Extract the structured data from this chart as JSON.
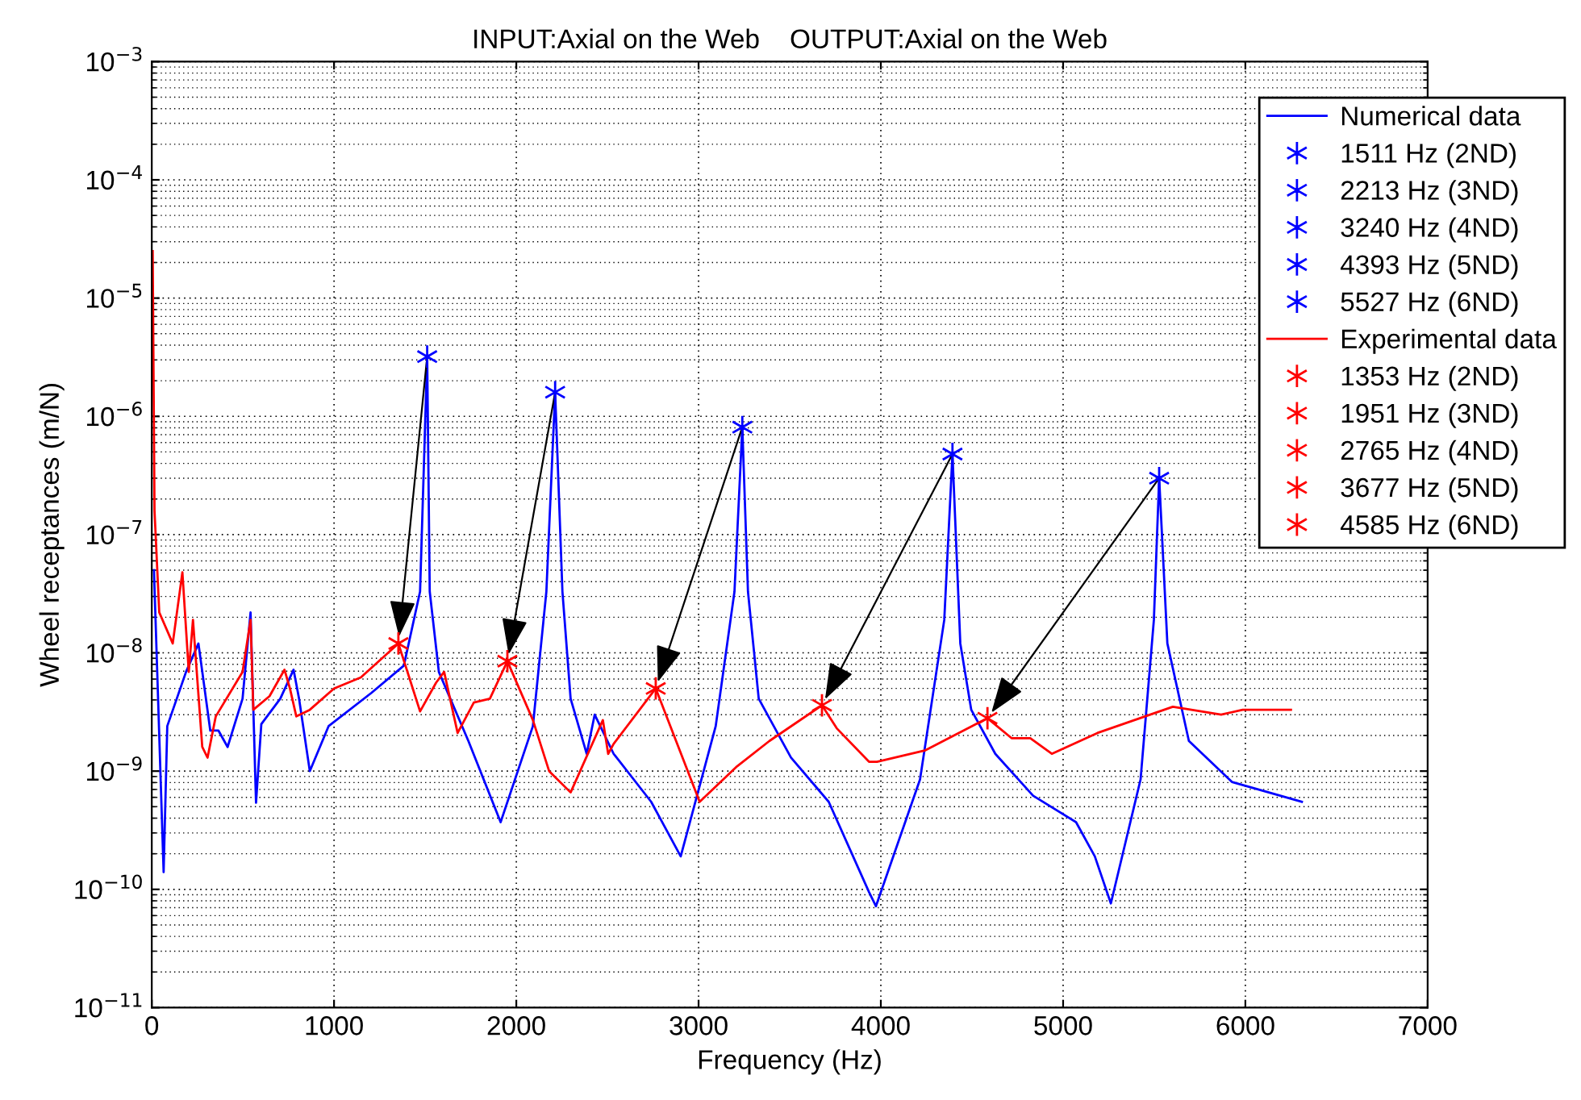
{
  "chart_data": {
    "type": "line",
    "title": "INPUT:Axial on the Web    OUTPUT:Axial on the Web",
    "xlabel": "Frequency (Hz)",
    "ylabel": "Wheel receptances (m/N)",
    "log": "y",
    "grid": true,
    "legend": "top right",
    "xlim": [
      0,
      7000
    ],
    "xticks": [
      0,
      1000,
      2000,
      3000,
      4000,
      5000,
      6000,
      7000
    ],
    "ylim": [
      1e-11,
      0.001
    ],
    "yticks": [
      {
        "value": 1e-11,
        "label": "10$^{−11}$"
      },
      {
        "value": 1e-10,
        "label": "10$^{−10}$"
      },
      {
        "value": 1e-09,
        "label": "10$^{−9}$"
      },
      {
        "value": 1e-08,
        "label": "10$^{−8}$"
      },
      {
        "value": 1e-07,
        "label": "10$^{−7}$"
      },
      {
        "value": 1e-06,
        "label": "10$^{−6}$"
      },
      {
        "value": 1e-05,
        "label": "10$^{−5}$"
      },
      {
        "value": 0.0001,
        "label": "10$^{−4}$"
      },
      {
        "value": 0.001,
        "label": "10$^{−3}$"
      }
    ],
    "series": [
      {
        "name": "Numerical data",
        "color": "#0000ff",
        "marker": "none",
        "x": [
          12,
          65,
          85,
          188,
          256,
          321,
          366,
          416,
          498,
          542,
          572,
          601,
          705,
          778,
          808,
          867,
          970,
          1206,
          1383,
          1472,
          1511,
          1525,
          1575,
          1737,
          1914,
          2091,
          2165,
          2213,
          2253,
          2298,
          2386,
          2430,
          2534,
          2740,
          2902,
          3094,
          3197,
          3240,
          3271,
          3330,
          3507,
          3714,
          3935,
          3973,
          4215,
          4348,
          4393,
          4436,
          4496,
          4628,
          4835,
          5071,
          5174,
          5262,
          5425,
          5498,
          5527,
          5572,
          5690,
          5926,
          6310
        ],
        "values": [
          5e-08,
          1.4e-10,
          2.4e-09,
          6.9e-09,
          1.2e-08,
          2.2e-09,
          2.2e-09,
          1.6e-09,
          4.1e-09,
          2.2e-08,
          5.4e-10,
          2.5e-09,
          4.1e-09,
          7.2e-09,
          4.1e-09,
          1e-09,
          2.4e-09,
          4.6e-09,
          7.8e-09,
          3.3e-08,
          3.2e-06,
          3.3e-08,
          6.9e-09,
          1.8e-09,
          3.7e-10,
          2.4e-09,
          3.3e-08,
          1.6e-06,
          3.3e-08,
          4.1e-09,
          1.4e-09,
          3e-09,
          1.4e-09,
          5.5e-10,
          1.9e-10,
          2.4e-09,
          3.3e-08,
          8.1e-07,
          3.3e-08,
          4.1e-09,
          1.3e-09,
          5.5e-10,
          9.5e-11,
          7.2e-11,
          8.5e-10,
          1.9e-08,
          4.8e-07,
          1.2e-08,
          3.3e-09,
          1.4e-09,
          6.2e-10,
          3.7e-10,
          1.9e-10,
          7.6e-11,
          8.5e-10,
          1.9e-08,
          3e-07,
          1.2e-08,
          1.8e-09,
          8.1e-10,
          5.5e-10
        ]
      },
      {
        "name": "1511 Hz (2ND)",
        "type": "scatter",
        "color": "#0000ff",
        "marker": "cross",
        "x": [
          1511
        ],
        "values": [
          3.2e-06
        ]
      },
      {
        "name": "2213 Hz (3ND)",
        "type": "scatter",
        "color": "#0000ff",
        "marker": "cross",
        "x": [
          2213
        ],
        "values": [
          1.6e-06
        ]
      },
      {
        "name": "3240 Hz (4ND)",
        "type": "scatter",
        "color": "#0000ff",
        "marker": "cross",
        "x": [
          3240
        ],
        "values": [
          8.1e-07
        ]
      },
      {
        "name": "4393 Hz (5ND)",
        "type": "scatter",
        "color": "#0000ff",
        "marker": "cross",
        "x": [
          4393
        ],
        "values": [
          4.8e-07
        ]
      },
      {
        "name": "5527 Hz (6ND)",
        "type": "scatter",
        "color": "#0000ff",
        "marker": "cross",
        "x": [
          5527
        ],
        "values": [
          3e-07
        ]
      },
      {
        "name": "Experimental data",
        "color": "#ff0000",
        "marker": "none",
        "x": [
          5,
          15,
          41,
          115,
          168,
          203,
          226,
          277,
          306,
          351,
          498,
          542,
          557,
          646,
          728,
          758,
          793,
          867,
          1000,
          1147,
          1353,
          1472,
          1560,
          1604,
          1678,
          1767,
          1855,
          1951,
          2091,
          2180,
          2298,
          2475,
          2504,
          2534,
          2765,
          3006,
          3212,
          3389,
          3677,
          3758,
          3935,
          3979,
          4245,
          4585,
          4717,
          4820,
          4938,
          5188,
          5602,
          5867,
          5985,
          6250
        ],
        "values": [
          2.5e-05,
          1.6e-07,
          2.2e-08,
          1.2e-08,
          4.8e-08,
          6.9e-09,
          1.9e-08,
          1.6e-09,
          1.3e-09,
          2.9e-09,
          6.9e-09,
          1.9e-08,
          3.3e-09,
          4.3e-09,
          7.2e-09,
          5e-09,
          2.9e-09,
          3.3e-09,
          5e-09,
          6.2e-09,
          1.2e-08,
          3.2e-09,
          5.6e-09,
          6.9e-09,
          2.1e-09,
          3.8e-09,
          4.1e-09,
          8.5e-09,
          2.7e-09,
          1e-09,
          6.6e-10,
          2.7e-09,
          1.4e-09,
          1.7e-09,
          5e-09,
          5.5e-10,
          1.1e-09,
          1.8e-09,
          3.6e-09,
          2.3e-09,
          1.2e-09,
          1.2e-09,
          1.5e-09,
          2.8e-09,
          1.9e-09,
          1.9e-09,
          1.4e-09,
          2.1e-09,
          3.5e-09,
          3e-09,
          3.3e-09,
          3.3e-09
        ]
      },
      {
        "name": "1353 Hz (2ND)",
        "type": "scatter",
        "color": "#ff0000",
        "marker": "cross",
        "x": [
          1353
        ],
        "values": [
          1.2e-08
        ]
      },
      {
        "name": "1951 Hz (3ND)",
        "type": "scatter",
        "color": "#ff0000",
        "marker": "cross",
        "x": [
          1951
        ],
        "values": [
          8.5e-09
        ]
      },
      {
        "name": "2765 Hz (4ND)",
        "type": "scatter",
        "color": "#ff0000",
        "marker": "cross",
        "x": [
          2765
        ],
        "values": [
          5e-09
        ]
      },
      {
        "name": "3677 Hz (5ND)",
        "type": "scatter",
        "color": "#ff0000",
        "marker": "cross",
        "x": [
          3677
        ],
        "values": [
          3.6e-09
        ]
      },
      {
        "name": "4585 Hz (6ND)",
        "type": "scatter",
        "color": "#ff0000",
        "marker": "cross",
        "x": [
          4585
        ],
        "values": [
          2.8e-09
        ]
      }
    ]
  }
}
